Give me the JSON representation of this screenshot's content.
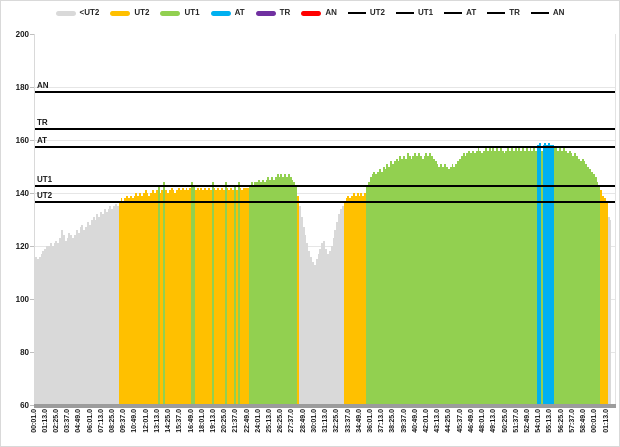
{
  "legend": {
    "items": [
      {
        "label": "<UT2",
        "type": "swatch",
        "color": "#D9D9D9"
      },
      {
        "label": "UT2",
        "type": "swatch",
        "color": "#FFC000"
      },
      {
        "label": "UT1",
        "type": "swatch",
        "color": "#92D050"
      },
      {
        "label": "AT",
        "type": "swatch",
        "color": "#00B0F0"
      },
      {
        "label": "TR",
        "type": "swatch",
        "color": "#7030A0"
      },
      {
        "label": "AN",
        "type": "swatch",
        "color": "#FF0000"
      },
      {
        "label": "UT2",
        "type": "line",
        "color": "#000000"
      },
      {
        "label": "UT1",
        "type": "line",
        "color": "#000000"
      },
      {
        "label": "AT",
        "type": "line",
        "color": "#000000"
      },
      {
        "label": "TR",
        "type": "line",
        "color": "#000000"
      },
      {
        "label": "AN",
        "type": "line",
        "color": "#000000"
      }
    ]
  },
  "y_axis": {
    "min": 60,
    "max": 200,
    "tick_step": 20,
    "ticks": [
      "200",
      "180",
      "160",
      "140",
      "120",
      "100",
      "80",
      "60"
    ]
  },
  "x_axis": {
    "labels": [
      "00:01.0",
      "01:13.0",
      "02:25.0",
      "03:37.0",
      "04:49.0",
      "06:01.0",
      "07:13.0",
      "08:25.0",
      "09:37.0",
      "10:49.0",
      "12:01.0",
      "13:13.0",
      "14:25.0",
      "15:37.0",
      "16:49.0",
      "18:01.0",
      "19:13.0",
      "20:25.0",
      "21:37.0",
      "22:49.0",
      "24:01.0",
      "25:13.0",
      "26:25.0",
      "27:37.0",
      "28:49.0",
      "30:01.0",
      "31:13.0",
      "32:25.0",
      "33:37.0",
      "34:49.0",
      "36:01.0",
      "37:13.0",
      "38:25.0",
      "39:37.0",
      "40:49.0",
      "42:01.0",
      "43:13.0",
      "44:25.0",
      "45:37.0",
      "46:49.0",
      "48:01.0",
      "49:13.0",
      "50:25.0",
      "51:37.0",
      "52:49.0",
      "54:01.0",
      "55:13.0",
      "56:25.0",
      "57:37.0",
      "58:49.0",
      "00:01.0",
      "01:13.0"
    ]
  },
  "thresholds": [
    {
      "label": "AN",
      "value": 178
    },
    {
      "label": "TR",
      "value": 164
    },
    {
      "label": "AT",
      "value": 157.5
    },
    {
      "label": "UT1",
      "value": 142.8
    },
    {
      "label": "UT2",
      "value": 136.5
    }
  ],
  "zone_colors": {
    "below_ut2": "#D9D9D9",
    "ut2": "#FFC000",
    "ut1": "#92D050",
    "at": "#00B0F0",
    "tr": "#7030A0",
    "an": "#FF0000",
    "threshold_line": "#000000",
    "axis_baseline": "#9C9C9C",
    "gridline": "#E6E6E6"
  },
  "chart_data": {
    "type": "bar",
    "title": "",
    "xlabel": "",
    "ylabel": "",
    "ylim": [
      60,
      200
    ],
    "legend_position": "top",
    "grid": "faint horizontal lines every 20 units",
    "x_start": "00:01.0",
    "sample_interval_seconds": 12,
    "zone_thresholds": {
      "UT2": 136.5,
      "UT1": 142.8,
      "AT": 157.5,
      "TR": 164,
      "AN": 178
    },
    "zone_rule": "each bar colored by zone of its value: <UT2 gray, UT2 orange, UT1 green, AT blue, TR purple, AN red",
    "values": [
      116,
      115,
      116,
      117,
      118,
      119,
      120,
      120,
      121,
      120,
      121,
      122,
      121,
      123,
      126,
      124,
      122,
      123,
      125,
      124,
      123,
      124,
      126,
      125,
      127,
      128,
      126,
      127,
      129,
      128,
      130,
      131,
      130,
      132,
      131,
      133,
      132,
      134,
      133,
      134,
      135,
      134,
      135,
      136,
      135,
      137,
      138,
      137,
      138,
      139,
      138,
      139,
      138,
      139,
      140,
      139,
      140,
      139,
      140,
      141,
      140,
      139,
      140,
      141,
      140,
      141,
      143,
      140,
      141,
      144,
      141,
      140,
      141,
      142,
      141,
      140,
      141,
      142,
      141,
      142,
      141,
      142,
      141,
      142,
      144,
      143,
      141,
      142,
      141,
      142,
      141,
      142,
      141,
      142,
      141,
      144,
      142,
      141,
      142,
      141,
      142,
      141,
      144,
      142,
      141,
      142,
      141,
      143,
      141,
      144,
      142,
      141,
      142,
      142,
      142,
      143,
      144,
      143,
      144,
      144,
      145,
      144,
      145,
      144,
      145,
      146,
      145,
      146,
      145,
      146,
      147,
      146,
      147,
      146,
      147,
      146,
      147,
      146,
      145,
      144,
      143,
      139,
      135,
      131,
      127,
      124,
      121,
      118,
      116,
      114,
      113,
      115,
      117,
      119,
      121,
      122,
      119,
      117,
      118,
      120,
      123,
      126,
      129,
      132,
      134,
      135,
      137,
      138,
      139,
      138,
      139,
      140,
      139,
      140,
      139,
      140,
      139,
      140,
      143,
      144,
      146,
      147,
      148,
      147,
      148,
      149,
      148,
      150,
      149,
      151,
      150,
      152,
      151,
      152,
      153,
      152,
      154,
      153,
      154,
      153,
      155,
      154,
      153,
      154,
      155,
      154,
      155,
      154,
      153,
      154,
      155,
      154,
      155,
      154,
      153,
      152,
      151,
      150,
      151,
      150,
      151,
      150,
      149,
      150,
      151,
      150,
      151,
      152,
      153,
      154,
      155,
      154,
      155,
      156,
      155,
      156,
      155,
      156,
      157,
      156,
      155,
      156,
      157,
      156,
      157,
      156,
      157,
      156,
      157,
      156,
      157,
      156,
      155,
      156,
      157,
      156,
      157,
      156,
      157,
      156,
      157,
      156,
      157,
      156,
      157,
      156,
      157,
      156,
      157,
      156,
      158,
      159,
      156,
      158,
      159,
      158,
      159,
      158,
      158,
      157,
      157,
      156,
      157,
      156,
      157,
      156,
      155,
      156,
      155,
      154,
      155,
      154,
      153,
      152,
      153,
      152,
      151,
      150,
      149,
      148,
      147,
      146,
      144,
      143,
      141,
      139,
      138,
      137,
      131,
      130
    ]
  }
}
